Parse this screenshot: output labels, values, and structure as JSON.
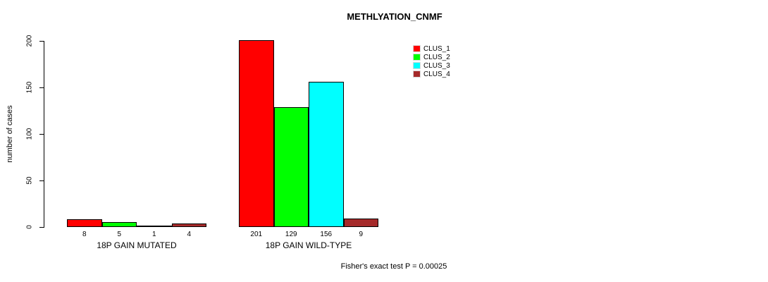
{
  "chart_data": {
    "type": "bar",
    "title": "METHLYATION_CNMF",
    "ylabel": "number of cases",
    "xlabel": "",
    "ylim": [
      0,
      200
    ],
    "yticks": [
      0,
      50,
      100,
      150,
      200
    ],
    "grid": false,
    "legend_position": "top-right",
    "series": [
      {
        "name": "CLUS_1",
        "color": "#FF0000"
      },
      {
        "name": "CLUS_2",
        "color": "#00FF00"
      },
      {
        "name": "CLUS_3",
        "color": "#00FFFF"
      },
      {
        "name": "CLUS_4",
        "color": "#A52A2A"
      }
    ],
    "groups": [
      {
        "label": "18P GAIN MUTATED",
        "values": [
          8,
          5,
          1,
          4
        ]
      },
      {
        "label": "18P GAIN WILD-TYPE",
        "values": [
          201,
          129,
          156,
          9
        ]
      }
    ],
    "annotation": "Fisher's exact test P = 0.00025"
  }
}
